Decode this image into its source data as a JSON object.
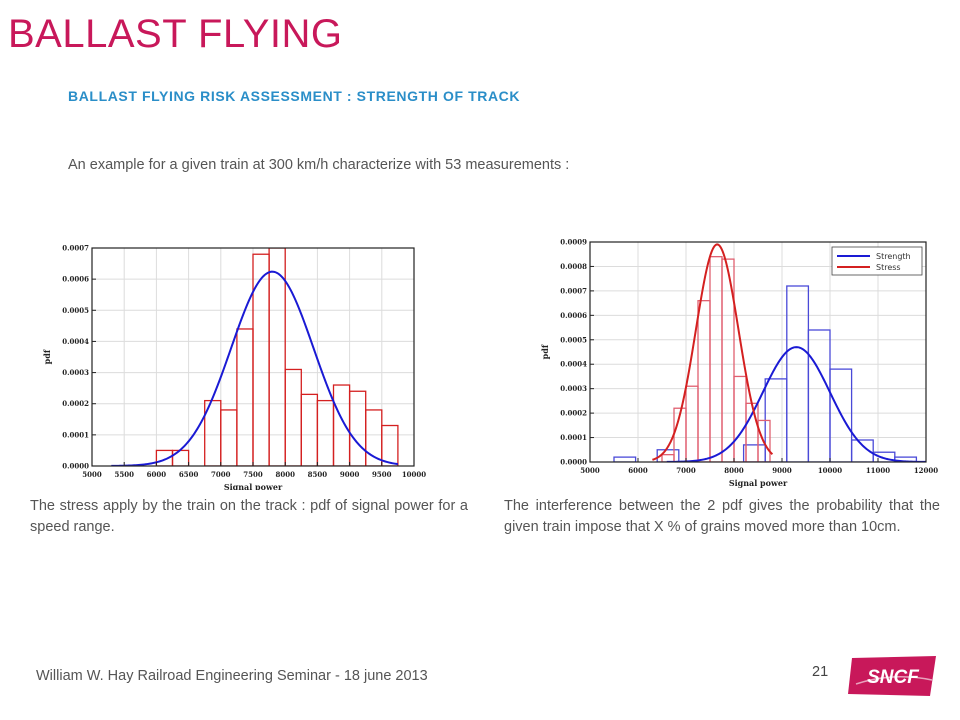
{
  "slide": {
    "title": "BALLAST FLYING",
    "subtitle": "BALLAST FLYING RISK ASSESSMENT : STRENGTH OF TRACK",
    "intro": "An example for a given train at 300 km/h characterize with 53 measurements :",
    "caption_left": "The stress apply by the train on the track : pdf of signal power for a speed range.",
    "caption_right": "The interference between the 2 pdf gives the probability that the given train impose that X % of grains moved more than 10cm.",
    "footer": "William W. Hay Railroad Engineering Seminar - 18 june 2013",
    "page_number": "21",
    "logo_text": "SNCF",
    "colors": {
      "title": "#c8185a",
      "subtitle": "#2a8ec8",
      "text": "#555555",
      "logo": "#c8185a"
    }
  },
  "chart_data": [
    {
      "type": "bar",
      "xlabel": "Signal power",
      "ylabel": "pdf",
      "xlim": [
        5000,
        10000
      ],
      "ylim": [
        0,
        0.0007
      ],
      "xticks": [
        "5000",
        "5500",
        "6000",
        "6500",
        "7000",
        "7500",
        "8000",
        "8500",
        "9000",
        "9500",
        "10000"
      ],
      "yticks": [
        "0.0000",
        "0.0001",
        "0.0002",
        "0.0003",
        "0.0004",
        "0.0005",
        "0.0006",
        "0.0007"
      ],
      "grid": true,
      "bin_width": 250,
      "series": [
        {
          "kind": "histogram",
          "color": "#d42020",
          "bin_starts": [
            6000,
            6250,
            6500,
            6750,
            7000,
            7250,
            7500,
            7750,
            8000,
            8250,
            8500,
            8750,
            9000,
            9250,
            9500,
            9750
          ],
          "values": [
            5e-05,
            5e-05,
            0.0,
            0.00021,
            0.00018,
            0.00044,
            0.00068,
            0.0007,
            0.00031,
            0.00023,
            0.00021,
            0.00026,
            0.00024,
            0.00018,
            0.00013,
            0.0
          ]
        },
        {
          "kind": "normal_curve",
          "color": "#1a1ad4",
          "mean": 7800,
          "std": 640,
          "peak": 0.000624,
          "x_range": [
            5300,
            9750
          ]
        }
      ]
    },
    {
      "type": "bar",
      "xlabel": "Signal power",
      "ylabel": "pdf",
      "xlim": [
        5000,
        12000
      ],
      "ylim": [
        0,
        0.0009
      ],
      "xticks": [
        "5000",
        "6000",
        "7000",
        "8000",
        "9000",
        "10000",
        "11000",
        "12000"
      ],
      "yticks": [
        "0.0000",
        "0.0001",
        "0.0002",
        "0.0003",
        "0.0004",
        "0.0005",
        "0.0006",
        "0.0007",
        "0.0008",
        "0.0009"
      ],
      "grid": true,
      "legend": {
        "position": "top-right",
        "entries": [
          {
            "name": "Strength",
            "color": "#1a1ad4"
          },
          {
            "name": "Stress",
            "color": "#d42020"
          }
        ]
      },
      "series": [
        {
          "name": "Strength",
          "kind": "histogram",
          "color": "#4a4ad8",
          "bin_width": 450,
          "bin_starts": [
            5500,
            5950,
            6400,
            6850,
            7300,
            7750,
            8200,
            8650,
            9100,
            9550,
            10000,
            10450,
            10900,
            11350
          ],
          "values": [
            2e-05,
            0.0,
            5e-05,
            0.0,
            0.0,
            0.0,
            7e-05,
            0.00034,
            0.00072,
            0.00054,
            0.00038,
            9e-05,
            4e-05,
            2e-05
          ]
        },
        {
          "name": "Strength",
          "kind": "normal_curve",
          "color": "#1a1ad4",
          "mean": 9300,
          "std": 700,
          "peak": 0.00047,
          "x_range": [
            6600,
            12000
          ]
        },
        {
          "name": "Stress",
          "kind": "histogram",
          "color": "#e06070",
          "bin_width": 250,
          "bin_starts": [
            6500,
            6750,
            7000,
            7250,
            7500,
            7750,
            8000,
            8250,
            8500,
            8750
          ],
          "values": [
            3e-05,
            0.00022,
            0.00031,
            0.00066,
            0.00084,
            0.00083,
            0.00035,
            0.00024,
            0.00017,
            0.0
          ]
        },
        {
          "name": "Stress",
          "kind": "normal_curve",
          "color": "#d42020",
          "mean": 7650,
          "std": 445,
          "peak": 0.00089,
          "x_range": [
            6300,
            8800
          ]
        }
      ]
    }
  ]
}
